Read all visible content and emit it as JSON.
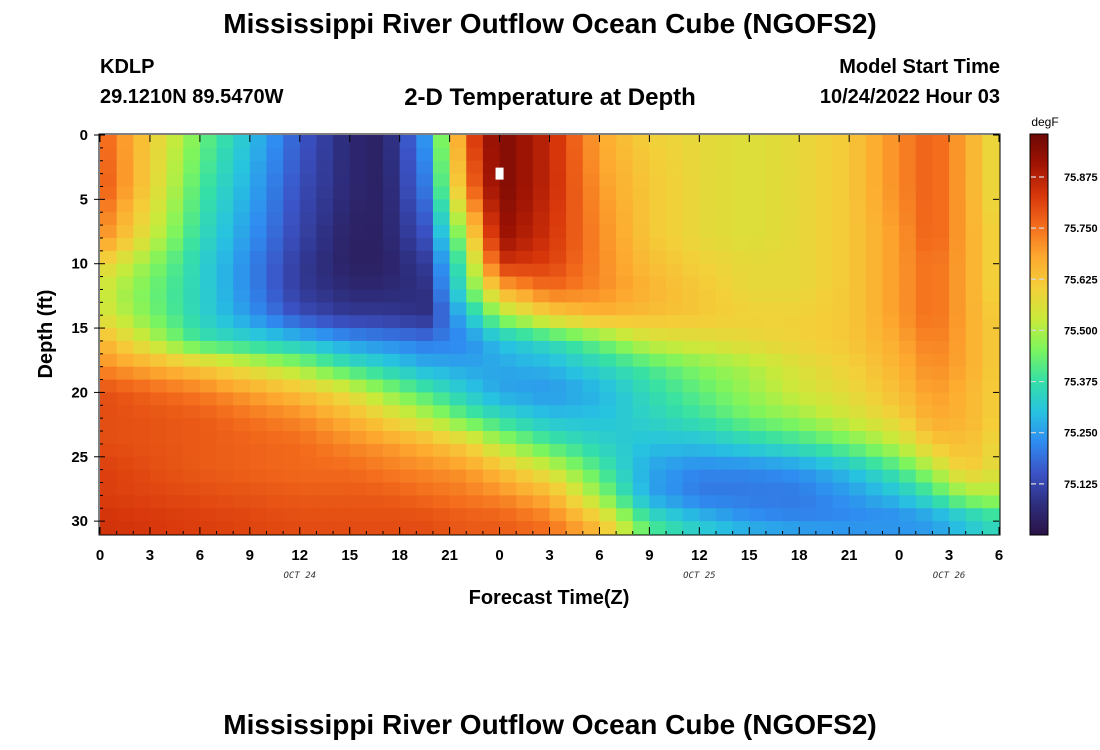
{
  "header": {
    "title": "Mississippi River Outflow Ocean Cube (NGOFS2)",
    "station_id": "KDLP",
    "station_coords": "29.1210N  89.5470W",
    "subtitle": "2-D Temperature at Depth",
    "model_start_label": "Model Start Time",
    "model_start_value": "10/24/2022 Hour 03"
  },
  "footer": {
    "title": "Mississippi River Outflow Ocean Cube (NGOFS2)"
  },
  "chart_data": {
    "type": "heatmap",
    "title": "2-D Temperature at Depth",
    "xlabel": "Forecast Time(Z)",
    "ylabel": "Depth (ft)",
    "x_range_hours": [
      0,
      54
    ],
    "x_ticks": [
      "0",
      "3",
      "6",
      "9",
      "12",
      "15",
      "18",
      "21",
      "0",
      "3",
      "6",
      "9",
      "12",
      "15",
      "18",
      "21",
      "0",
      "3",
      "6"
    ],
    "date_labels": [
      {
        "text": "OCT 24",
        "at_hour": 12
      },
      {
        "text": "OCT 25",
        "at_hour": 36
      },
      {
        "text": "OCT 26",
        "at_hour": 51
      }
    ],
    "y_range_ft": [
      0,
      31
    ],
    "y_ticks": [
      0,
      5,
      10,
      15,
      20,
      25,
      30
    ],
    "colorbar": {
      "unit": "degF",
      "range": [
        75.0,
        75.98
      ],
      "ticks": [
        "75.125",
        "75.250",
        "75.375",
        "75.500",
        "75.625",
        "75.750",
        "75.875"
      ],
      "colors": [
        "#2a1245",
        "#2e2e7e",
        "#3b53c6",
        "#2f8bf0",
        "#27c3e0",
        "#36e0a5",
        "#7cf55e",
        "#c9ea3a",
        "#f3d03a",
        "#fdaa30",
        "#f46e1d",
        "#d8370b",
        "#a11404",
        "#6c0805"
      ]
    },
    "grid": {
      "cols": 54,
      "rows": 31,
      "hours": [
        0,
        6,
        12,
        15,
        17,
        19.5,
        22,
        24,
        27,
        30,
        33,
        36,
        39,
        42,
        45,
        48,
        50,
        52,
        54
      ],
      "depths": [
        0,
        4,
        8,
        10,
        12,
        14,
        16,
        18,
        20,
        22,
        24,
        26,
        28,
        30,
        31
      ],
      "values_degF": [
        [
          75.78,
          75.44,
          75.16,
          75.06,
          75.04,
          75.24,
          75.78,
          75.96,
          75.86,
          75.68,
          75.6,
          75.58,
          75.56,
          75.58,
          75.62,
          75.72,
          75.78,
          75.68,
          75.56
        ],
        [
          75.8,
          75.4,
          75.14,
          75.06,
          75.04,
          75.2,
          75.72,
          75.96,
          75.86,
          75.7,
          75.62,
          75.58,
          75.56,
          75.58,
          75.62,
          75.72,
          75.78,
          75.68,
          75.56
        ],
        [
          75.72,
          75.36,
          75.12,
          75.04,
          75.04,
          75.14,
          75.52,
          75.92,
          75.84,
          75.72,
          75.62,
          75.58,
          75.56,
          75.58,
          75.62,
          75.7,
          75.78,
          75.68,
          75.58
        ],
        [
          75.6,
          75.34,
          75.1,
          75.04,
          75.04,
          75.1,
          75.44,
          75.84,
          75.82,
          75.72,
          75.64,
          75.6,
          75.58,
          75.58,
          75.62,
          75.7,
          75.76,
          75.68,
          75.58
        ],
        [
          75.54,
          75.34,
          75.1,
          75.06,
          75.06,
          75.08,
          75.4,
          75.66,
          75.76,
          75.72,
          75.66,
          75.62,
          75.58,
          75.58,
          75.62,
          75.7,
          75.76,
          75.68,
          75.58
        ],
        [
          75.56,
          75.34,
          75.14,
          75.1,
          75.1,
          75.08,
          75.3,
          75.48,
          75.6,
          75.66,
          75.64,
          75.62,
          75.6,
          75.6,
          75.62,
          75.7,
          75.76,
          75.68,
          75.6
        ],
        [
          75.66,
          75.38,
          75.3,
          75.24,
          75.22,
          75.2,
          75.22,
          75.3,
          75.36,
          75.44,
          75.54,
          75.56,
          75.58,
          75.6,
          75.62,
          75.68,
          75.74,
          75.68,
          75.6
        ],
        [
          75.72,
          75.62,
          75.48,
          75.38,
          75.34,
          75.28,
          75.26,
          75.26,
          75.28,
          75.34,
          75.4,
          75.46,
          75.5,
          75.56,
          75.6,
          75.66,
          75.72,
          75.68,
          75.6
        ],
        [
          75.8,
          75.74,
          75.64,
          75.56,
          75.48,
          75.4,
          75.32,
          75.26,
          75.24,
          75.28,
          75.36,
          75.42,
          75.48,
          75.54,
          75.58,
          75.64,
          75.7,
          75.66,
          75.6
        ],
        [
          75.8,
          75.78,
          75.72,
          75.66,
          75.6,
          75.52,
          75.42,
          75.36,
          75.3,
          75.3,
          75.34,
          75.38,
          75.44,
          75.48,
          75.54,
          75.6,
          75.68,
          75.66,
          75.6
        ],
        [
          75.8,
          75.78,
          75.76,
          75.72,
          75.7,
          75.66,
          75.6,
          75.5,
          75.4,
          75.34,
          75.3,
          75.3,
          75.34,
          75.38,
          75.44,
          75.52,
          75.62,
          75.64,
          75.58
        ],
        [
          75.82,
          75.78,
          75.76,
          75.76,
          75.74,
          75.72,
          75.7,
          75.64,
          75.54,
          75.4,
          75.26,
          75.22,
          75.22,
          75.24,
          75.3,
          75.4,
          75.5,
          75.62,
          75.56
        ],
        [
          75.82,
          75.8,
          75.78,
          75.78,
          75.78,
          75.76,
          75.74,
          75.72,
          75.66,
          75.48,
          75.26,
          75.2,
          75.2,
          75.2,
          75.24,
          75.3,
          75.38,
          75.48,
          75.5
        ],
        [
          75.84,
          75.82,
          75.8,
          75.8,
          75.8,
          75.8,
          75.78,
          75.78,
          75.74,
          75.62,
          75.38,
          75.3,
          75.24,
          75.22,
          75.22,
          75.22,
          75.24,
          75.3,
          75.36
        ],
        [
          75.84,
          75.82,
          75.8,
          75.8,
          75.8,
          75.8,
          75.78,
          75.78,
          75.76,
          75.66,
          75.42,
          75.34,
          75.3,
          75.28,
          75.26,
          75.26,
          75.26,
          75.32,
          75.36
        ]
      ]
    },
    "marker": {
      "hour": 24,
      "depth_ft": 3
    }
  }
}
